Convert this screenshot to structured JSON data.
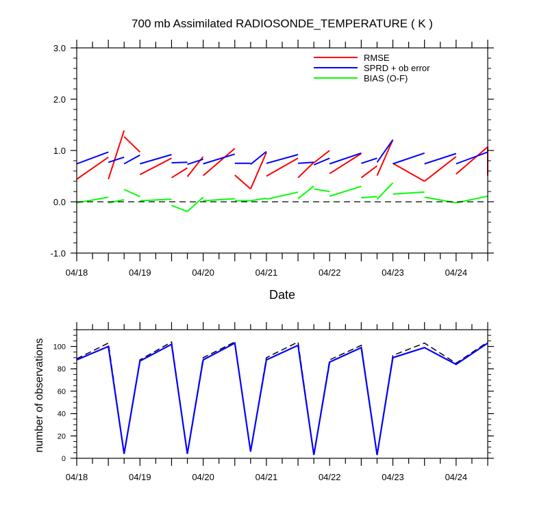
{
  "chart_data": [
    {
      "type": "line",
      "title": "700 mb Assimilated RADIOSONDE_TEMPERATURE ( K )",
      "xlabel": "Date",
      "ylabel": "",
      "ylim": [
        -1.0,
        3.0
      ],
      "xlim": [
        0.0,
        6.5
      ],
      "x_axis_unit": "day",
      "xticks": [
        {
          "x": 0,
          "label": "04/18"
        },
        {
          "x": 1,
          "label": "04/19"
        },
        {
          "x": 2,
          "label": "04/20"
        },
        {
          "x": 3,
          "label": "04/21"
        },
        {
          "x": 4,
          "label": "04/22"
        },
        {
          "x": 5,
          "label": "04/23"
        },
        {
          "x": 6,
          "label": "04/24"
        }
      ],
      "yticks": [
        {
          "y": -1.0,
          "label": "-1.0"
        },
        {
          "y": 0.0,
          "label": "0.0"
        },
        {
          "y": 1.0,
          "label": "1.0"
        },
        {
          "y": 2.0,
          "label": "2.0"
        },
        {
          "y": 3.0,
          "label": "3.0"
        }
      ],
      "grid": false,
      "zero_line": "dashed",
      "legend_placement": "top-right",
      "series": [
        {
          "name": "RMSE",
          "color": "#ff0000",
          "segments": [
            [
              [
                0.0,
                0.44
              ],
              [
                0.5,
                0.87
              ]
            ],
            [
              [
                0.5,
                0.44
              ],
              [
                0.75,
                1.39
              ]
            ],
            [
              [
                0.75,
                1.27
              ],
              [
                1.0,
                0.97
              ]
            ],
            [
              [
                1.0,
                0.53
              ],
              [
                1.5,
                0.85
              ]
            ],
            [
              [
                1.5,
                0.47
              ],
              [
                1.75,
                0.66
              ]
            ],
            [
              [
                1.75,
                0.49
              ],
              [
                2.0,
                0.88
              ]
            ],
            [
              [
                2.0,
                0.51
              ],
              [
                2.5,
                1.04
              ]
            ],
            [
              [
                2.5,
                0.52
              ],
              [
                2.75,
                0.25
              ]
            ],
            [
              [
                2.75,
                0.25
              ],
              [
                3.0,
                0.96
              ]
            ],
            [
              [
                3.0,
                0.5
              ],
              [
                3.5,
                0.85
              ]
            ],
            [
              [
                3.5,
                0.47
              ],
              [
                3.75,
                0.77
              ]
            ],
            [
              [
                3.75,
                0.76
              ],
              [
                4.0,
                1.0
              ]
            ],
            [
              [
                4.0,
                0.55
              ],
              [
                4.5,
                0.94
              ]
            ],
            [
              [
                4.5,
                0.47
              ],
              [
                4.75,
                0.7
              ]
            ],
            [
              [
                4.75,
                0.51
              ],
              [
                5.0,
                1.21
              ]
            ],
            [
              [
                5.0,
                0.75
              ],
              [
                5.5,
                0.4
              ]
            ],
            [
              [
                5.5,
                0.4
              ],
              [
                6.0,
                0.88
              ]
            ],
            [
              [
                6.0,
                0.54
              ],
              [
                6.5,
                1.07
              ]
            ],
            [
              [
                6.5,
                1.07
              ],
              [
                6.5,
                0.51
              ]
            ]
          ]
        },
        {
          "name": "SPRD + ob error",
          "color": "#0000ff",
          "segments": [
            [
              [
                0.0,
                0.74
              ],
              [
                0.5,
                0.97
              ]
            ],
            [
              [
                0.5,
                0.77
              ],
              [
                0.75,
                0.87
              ]
            ],
            [
              [
                0.75,
                0.74
              ],
              [
                1.0,
                0.91
              ]
            ],
            [
              [
                1.0,
                0.74
              ],
              [
                1.5,
                0.92
              ]
            ],
            [
              [
                1.5,
                0.76
              ],
              [
                1.75,
                0.77
              ]
            ],
            [
              [
                1.75,
                0.73
              ],
              [
                2.0,
                0.83
              ]
            ],
            [
              [
                2.0,
                0.74
              ],
              [
                2.5,
                0.93
              ]
            ],
            [
              [
                2.5,
                0.75
              ],
              [
                2.75,
                0.75
              ]
            ],
            [
              [
                2.75,
                0.73
              ],
              [
                3.0,
                0.98
              ]
            ],
            [
              [
                3.0,
                0.75
              ],
              [
                3.5,
                0.92
              ]
            ],
            [
              [
                3.5,
                0.75
              ],
              [
                3.75,
                0.77
              ]
            ],
            [
              [
                3.75,
                0.72
              ],
              [
                4.0,
                0.85
              ]
            ],
            [
              [
                4.0,
                0.74
              ],
              [
                4.5,
                0.95
              ]
            ],
            [
              [
                4.5,
                0.75
              ],
              [
                4.75,
                0.85
              ]
            ],
            [
              [
                4.75,
                0.77
              ],
              [
                5.0,
                1.21
              ]
            ],
            [
              [
                5.0,
                0.74
              ],
              [
                5.5,
                0.95
              ]
            ],
            [
              [
                5.5,
                0.74
              ],
              [
                6.0,
                0.94
              ]
            ],
            [
              [
                6.0,
                0.74
              ],
              [
                6.5,
                0.97
              ]
            ]
          ]
        },
        {
          "name": "BIAS (O-F)",
          "color": "#00ff00",
          "segments": [
            [
              [
                0.0,
                -0.02
              ],
              [
                0.5,
                0.09
              ]
            ],
            [
              [
                0.5,
                -0.02
              ],
              [
                0.75,
                0.04
              ]
            ],
            [
              [
                0.75,
                0.24
              ],
              [
                1.0,
                0.1
              ]
            ],
            [
              [
                1.0,
                0.02
              ],
              [
                1.5,
                0.05
              ]
            ],
            [
              [
                1.5,
                -0.07
              ],
              [
                1.75,
                -0.19
              ]
            ],
            [
              [
                1.75,
                -0.19
              ],
              [
                2.0,
                0.09
              ]
            ],
            [
              [
                2.0,
                0.02
              ],
              [
                2.5,
                0.06
              ]
            ],
            [
              [
                2.5,
                0.02
              ],
              [
                2.75,
                0.02
              ]
            ],
            [
              [
                2.75,
                0.02
              ],
              [
                3.0,
                0.07
              ]
            ],
            [
              [
                3.0,
                0.05
              ],
              [
                3.5,
                0.19
              ]
            ],
            [
              [
                3.5,
                0.06
              ],
              [
                3.75,
                0.31
              ]
            ],
            [
              [
                3.75,
                0.25
              ],
              [
                4.0,
                0.2
              ]
            ],
            [
              [
                4.0,
                0.11
              ],
              [
                4.5,
                0.3
              ]
            ],
            [
              [
                4.5,
                0.08
              ],
              [
                4.75,
                0.1
              ]
            ],
            [
              [
                4.75,
                0.05
              ],
              [
                5.0,
                0.37
              ]
            ],
            [
              [
                5.0,
                0.15
              ],
              [
                5.5,
                0.19
              ]
            ],
            [
              [
                5.5,
                0.09
              ],
              [
                6.0,
                -0.02
              ]
            ],
            [
              [
                6.0,
                -0.02
              ],
              [
                6.5,
                0.11
              ]
            ]
          ]
        }
      ]
    },
    {
      "type": "line",
      "title": "",
      "xlabel": "",
      "ylabel": "number of observations",
      "ylim": [
        0,
        115
      ],
      "xlim": [
        0.0,
        6.5
      ],
      "x_axis_unit": "day",
      "xticks": [
        {
          "x": 0,
          "label": "04/18"
        },
        {
          "x": 1,
          "label": "04/19"
        },
        {
          "x": 2,
          "label": "04/20"
        },
        {
          "x": 3,
          "label": "04/21"
        },
        {
          "x": 4,
          "label": "04/22"
        },
        {
          "x": 5,
          "label": "04/23"
        },
        {
          "x": 6,
          "label": "04/24"
        }
      ],
      "yticks": [
        {
          "y": 0,
          "label": "0"
        },
        {
          "y": 20,
          "label": "20"
        },
        {
          "y": 40,
          "label": "40"
        },
        {
          "y": 60,
          "label": "60"
        },
        {
          "y": 80,
          "label": "80"
        },
        {
          "y": 100,
          "label": "100"
        }
      ],
      "grid": false,
      "series": [
        {
          "name": "",
          "color": "#000000",
          "dash": "dashed",
          "x": [
            0.0,
            0.5,
            0.75,
            1.0,
            1.5,
            1.75,
            2.0,
            2.5,
            2.75,
            3.0,
            3.5,
            3.75,
            4.0,
            4.5,
            4.75,
            5.0,
            5.5,
            6.0,
            6.5
          ],
          "y": [
            89,
            103,
            4,
            88,
            104,
            4,
            90,
            104,
            6,
            90,
            104,
            3,
            88,
            101,
            3,
            92,
            103,
            85,
            104
          ]
        },
        {
          "name": "",
          "color": "#0000ff",
          "dash": "solid",
          "x": [
            0.0,
            0.5,
            0.75,
            1.0,
            1.5,
            1.75,
            2.0,
            2.5,
            2.75,
            3.0,
            3.5,
            3.75,
            4.0,
            4.5,
            4.75,
            5.0,
            5.5,
            6.0,
            6.5
          ],
          "y": [
            88,
            100,
            4,
            87,
            102,
            4,
            88,
            103,
            6,
            88,
            101,
            3,
            86,
            99,
            3,
            90,
            99,
            84,
            103
          ]
        }
      ]
    }
  ]
}
